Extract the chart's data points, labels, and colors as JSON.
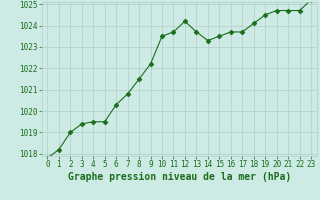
{
  "x": [
    0,
    1,
    2,
    3,
    4,
    5,
    6,
    7,
    8,
    9,
    10,
    11,
    12,
    13,
    14,
    15,
    16,
    17,
    18,
    19,
    20,
    21,
    22,
    23
  ],
  "y": [
    1017.8,
    1018.2,
    1019.0,
    1019.4,
    1019.5,
    1019.5,
    1020.3,
    1020.8,
    1021.5,
    1022.2,
    1023.5,
    1023.7,
    1024.2,
    1023.7,
    1023.3,
    1023.5,
    1023.7,
    1023.7,
    1024.1,
    1024.5,
    1024.7,
    1024.7,
    1024.7,
    1025.2
  ],
  "ylim": [
    1018,
    1025
  ],
  "yticks": [
    1018,
    1019,
    1020,
    1021,
    1022,
    1023,
    1024,
    1025
  ],
  "xlim": [
    -0.5,
    23.5
  ],
  "xticks": [
    0,
    1,
    2,
    3,
    4,
    5,
    6,
    7,
    8,
    9,
    10,
    11,
    12,
    13,
    14,
    15,
    16,
    17,
    18,
    19,
    20,
    21,
    22,
    23
  ],
  "line_color": "#1a6e1a",
  "marker": "D",
  "marker_size": 2.5,
  "bg_color": "#ceeae4",
  "grid_color": "#b0cec8",
  "xlabel": "Graphe pression niveau de la mer (hPa)",
  "xlabel_color": "#1a6e1a",
  "tick_color": "#1a6e1a",
  "spine_color": "#888888",
  "label_fontsize": 7,
  "tick_fontsize": 5.5
}
